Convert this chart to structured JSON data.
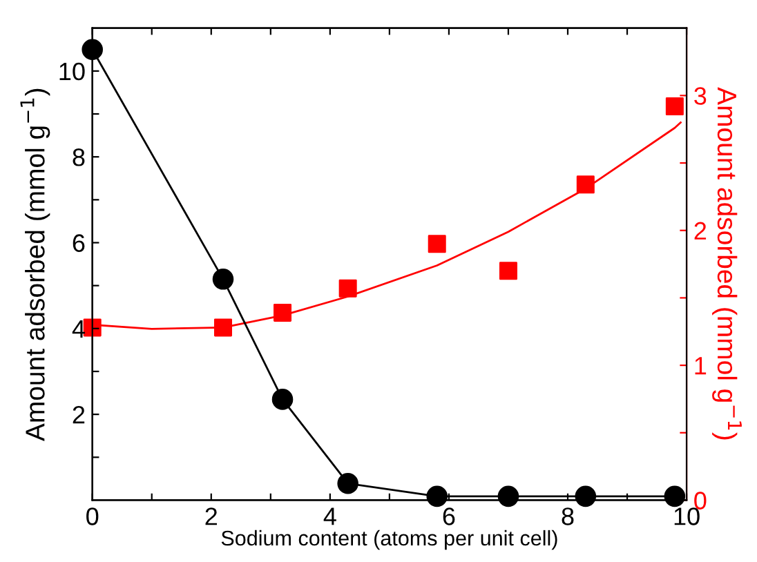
{
  "chart_data": {
    "type": "line",
    "xlabel": "Sodium content (atoms per unit cell)",
    "ylabel": "Amount adsorbed (mmol g$^{−1}$)",
    "y2label": "Amount adsorbed (mmol g$^{−1}$)",
    "xlim": [
      0,
      10
    ],
    "ylim": [
      0,
      11
    ],
    "y2lim": [
      0,
      3.5
    ],
    "xticks": [
      0,
      {
        "value": 1,
        "label": null
      },
      2,
      {
        "value": 3,
        "label": null
      },
      4,
      {
        "value": 5,
        "label": null
      },
      6,
      {
        "value": 7,
        "label": null
      },
      8,
      {
        "value": 9,
        "label": null
      },
      10
    ],
    "yticks": [
      {
        "value": 1,
        "label": null
      },
      2,
      {
        "value": 3,
        "label": null
      },
      4,
      {
        "value": 5,
        "label": null
      },
      6,
      {
        "value": 7,
        "label": null
      },
      8,
      {
        "value": 9,
        "label": null
      },
      10
    ],
    "y2ticks": [
      0,
      {
        "value": 0.5,
        "label": null
      },
      1,
      {
        "value": 1.5,
        "label": null
      },
      2,
      {
        "value": 2.5,
        "label": null
      },
      3
    ],
    "grid": false,
    "legend": false,
    "series": [
      {
        "color": "#000000",
        "marker": "circle",
        "line_style": "solid",
        "x": [
          0,
          2.2,
          3.2,
          4.3,
          5.8,
          7.0,
          8.3,
          9.8
        ],
        "values": [
          10.5,
          5.15,
          2.35,
          0.39,
          0.09,
          0.09,
          0.09,
          0.09
        ]
      },
      {
        "type": "scatter",
        "axis": "y2",
        "color": "#ff0000",
        "marker": "square",
        "x": [
          0,
          2.2,
          3.2,
          4.3,
          5.8,
          7.0,
          8.3,
          9.8
        ],
        "values": [
          1.28,
          1.28,
          1.39,
          1.57,
          1.9,
          1.7,
          2.34,
          2.92
        ]
      },
      {
        "axis": "y2",
        "color": "#ff0000",
        "marker": "none",
        "line_style": "solid",
        "x": [
          0,
          1,
          2.2,
          3.2,
          4.3,
          5.8,
          7.0,
          8.3,
          9.8,
          9.9
        ],
        "values": [
          1.3,
          1.27,
          1.28,
          1.37,
          1.51,
          1.74,
          1.99,
          2.31,
          2.76,
          2.8
        ]
      }
    ]
  }
}
